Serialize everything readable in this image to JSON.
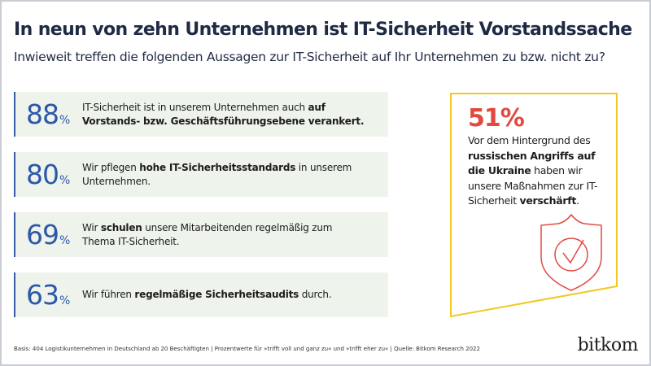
{
  "title": "In neun von zehn Unternehmen ist IT-Sicherheit Vorstandssache",
  "subtitle": "Inwieweit treffen die folgenden Aussagen zur IT-Sicherheit auf Ihr Unternehmen zu bzw. nicht zu?",
  "items": [
    {
      "value": "88",
      "unit": "%",
      "pre": "IT-Sicherheit ist in unserem Unternehmen auch ",
      "bold": "auf Vorstands- bzw. Geschäftsführungsebene verankert.",
      "post": ""
    },
    {
      "value": "80",
      "unit": "%",
      "pre": "Wir pflegen ",
      "bold": "hohe IT-Sicherheitsstandards",
      "post": " in unserem Unternehmen."
    },
    {
      "value": "69",
      "unit": "%",
      "pre": "Wir ",
      "bold": "schulen",
      "post": " unsere Mitarbeitenden regelmäßig zum Thema IT-Sicherheit."
    },
    {
      "value": "63",
      "unit": "%",
      "pre": "Wir führen ",
      "bold": "regelmäßige Sicherheitsaudits",
      "post": " durch."
    }
  ],
  "highlight": {
    "value": "51%",
    "t1": "Vor dem Hintergrund des ",
    "b1": "russischen Angriffs auf die Ukraine",
    "t2": " haben wir unsere Maßnahmen zur IT-Sicherheit ",
    "b2": "verschärft",
    "t3": ".",
    "icon": "shield-check-icon"
  },
  "footer": "Basis: 404 Logistikunternehmen in Deutschland ab 20 Beschäftigten | Prozentwerte für »trifft voll und ganz zu« und »trifft eher zu« | Quelle: Bitkom Research 2022",
  "logo": "bitkom",
  "colors": {
    "accent": "#2d58a8",
    "red": "#e2493f",
    "yellow": "#f2c823",
    "rowbg": "#eef3ec"
  }
}
